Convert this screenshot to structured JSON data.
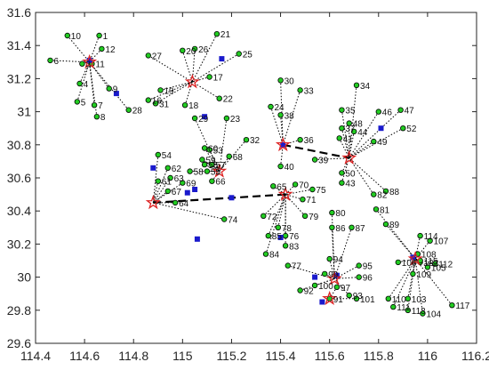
{
  "chart_data": {
    "type": "scatter",
    "title": "",
    "xlabel": "",
    "ylabel": "",
    "xlim": [
      114.4,
      116.2
    ],
    "ylim": [
      29.6,
      31.6
    ],
    "x_ticks": [
      "114.4",
      "114.6",
      "114.8",
      "115",
      "115.2",
      "115.4",
      "115.6",
      "115.8",
      "116",
      "116.2"
    ],
    "y_ticks": [
      "29.6",
      "29.8",
      "30",
      "30.2",
      "30.4",
      "30.6",
      "30.8",
      "31",
      "31.2",
      "31.4",
      "31.6"
    ],
    "grid": false,
    "colors": {
      "point_fill": "#22cc22",
      "point_edge": "#000000",
      "hub_marker": "#1a1acc",
      "center_star": "#dd2222",
      "link_line": "#000000"
    },
    "centers": [
      {
        "name": "c1",
        "x": 114.62,
        "y": 31.3
      },
      {
        "name": "c2",
        "x": 115.04,
        "y": 31.18
      },
      {
        "name": "c3",
        "x": 115.41,
        "y": 30.8
      },
      {
        "name": "c4",
        "x": 115.68,
        "y": 30.72
      },
      {
        "name": "c5",
        "x": 115.15,
        "y": 30.64
      },
      {
        "name": "c6",
        "x": 114.88,
        "y": 30.45
      },
      {
        "name": "c7",
        "x": 115.42,
        "y": 30.5
      },
      {
        "name": "c8",
        "x": 115.62,
        "y": 29.99
      },
      {
        "name": "c9",
        "x": 115.6,
        "y": 29.87
      },
      {
        "name": "c10",
        "x": 115.95,
        "y": 30.11
      }
    ],
    "center_links": [
      [
        "c6",
        "c7"
      ],
      [
        "c3",
        "c4"
      ]
    ],
    "points": [
      {
        "label": "1",
        "x": 114.66,
        "y": 31.46,
        "c": "c1"
      },
      {
        "label": "3",
        "x": 114.59,
        "y": 31.29,
        "c": "c1"
      },
      {
        "label": "4",
        "x": 114.58,
        "y": 31.17,
        "c": "c1"
      },
      {
        "label": "5",
        "x": 114.57,
        "y": 31.06,
        "c": "c1"
      },
      {
        "label": "6",
        "x": 114.46,
        "y": 31.31,
        "c": "c1"
      },
      {
        "label": "7",
        "x": 114.64,
        "y": 31.04,
        "c": "c1"
      },
      {
        "label": "8",
        "x": 114.65,
        "y": 30.97,
        "c": "c1"
      },
      {
        "label": "9",
        "x": 114.7,
        "y": 31.14,
        "c": "c1"
      },
      {
        "label": "10",
        "x": 114.53,
        "y": 31.46,
        "c": "c1"
      },
      {
        "label": "11",
        "x": 114.63,
        "y": 31.29,
        "c": "c1"
      },
      {
        "label": "12",
        "x": 114.67,
        "y": 31.38,
        "c": "c1"
      },
      {
        "label": "28",
        "x": 114.78,
        "y": 31.01,
        "c": "c1"
      },
      {
        "label": "16",
        "x": 114.86,
        "y": 31.07,
        "c": "c2"
      },
      {
        "label": "17",
        "x": 115.11,
        "y": 31.21,
        "c": "c2"
      },
      {
        "label": "18",
        "x": 115.01,
        "y": 31.04,
        "c": "c2"
      },
      {
        "label": "19",
        "x": 114.91,
        "y": 31.13,
        "c": "c2"
      },
      {
        "label": "20",
        "x": 115.0,
        "y": 31.37,
        "c": "c2"
      },
      {
        "label": "21",
        "x": 115.14,
        "y": 31.47,
        "c": "c2"
      },
      {
        "label": "22",
        "x": 115.15,
        "y": 31.08,
        "c": "c2"
      },
      {
        "label": "25",
        "x": 115.23,
        "y": 31.35,
        "c": "c2"
      },
      {
        "label": "26",
        "x": 115.05,
        "y": 31.38,
        "c": "c2"
      },
      {
        "label": "27",
        "x": 114.86,
        "y": 31.34,
        "c": "c2"
      },
      {
        "label": "31",
        "x": 114.89,
        "y": 31.05,
        "c": "c2"
      },
      {
        "label": "24",
        "x": 115.36,
        "y": 31.03,
        "c": "c3"
      },
      {
        "label": "30",
        "x": 115.4,
        "y": 31.19,
        "c": "c3"
      },
      {
        "label": "33",
        "x": 115.48,
        "y": 31.13,
        "c": "c3"
      },
      {
        "label": "36",
        "x": 115.48,
        "y": 30.83,
        "c": "c3"
      },
      {
        "label": "38",
        "x": 115.4,
        "y": 30.98,
        "c": "c3"
      },
      {
        "label": "40",
        "x": 115.4,
        "y": 30.67,
        "c": "c3"
      },
      {
        "label": "34",
        "x": 115.71,
        "y": 31.16,
        "c": "c4"
      },
      {
        "label": "35",
        "x": 115.65,
        "y": 31.01,
        "c": "c4"
      },
      {
        "label": "37",
        "x": 115.65,
        "y": 30.9,
        "c": "c4"
      },
      {
        "label": "39",
        "x": 115.54,
        "y": 30.71,
        "c": "c4"
      },
      {
        "label": "41",
        "x": 115.64,
        "y": 30.84,
        "c": "c4"
      },
      {
        "label": "43",
        "x": 115.65,
        "y": 30.57,
        "c": "c4"
      },
      {
        "label": "44",
        "x": 115.7,
        "y": 30.88,
        "c": "c4"
      },
      {
        "label": "46",
        "x": 115.8,
        "y": 31.0,
        "c": "c4"
      },
      {
        "label": "47",
        "x": 115.89,
        "y": 31.01,
        "c": "c4"
      },
      {
        "label": "48",
        "x": 115.68,
        "y": 30.93,
        "c": "c4"
      },
      {
        "label": "49",
        "x": 115.78,
        "y": 30.82,
        "c": "c4"
      },
      {
        "label": "50",
        "x": 115.65,
        "y": 30.63,
        "c": "c4"
      },
      {
        "label": "52",
        "x": 115.9,
        "y": 30.9,
        "c": "c4"
      },
      {
        "label": "82",
        "x": 115.78,
        "y": 30.5,
        "c": "c4"
      },
      {
        "label": "88",
        "x": 115.83,
        "y": 30.52,
        "c": "c4"
      },
      {
        "label": "23",
        "x": 115.18,
        "y": 30.96,
        "c": "c5"
      },
      {
        "label": "29",
        "x": 115.05,
        "y": 30.96,
        "c": "c5"
      },
      {
        "label": "32",
        "x": 115.26,
        "y": 30.83,
        "c": "c5"
      },
      {
        "label": "53",
        "x": 115.11,
        "y": 30.77,
        "c": "c5"
      },
      {
        "label": "55",
        "x": 115.1,
        "y": 30.64,
        "c": "c5"
      },
      {
        "label": "56",
        "x": 115.09,
        "y": 30.68,
        "c": "c5"
      },
      {
        "label": "57",
        "x": 115.12,
        "y": 30.68,
        "c": "c5"
      },
      {
        "label": "58",
        "x": 115.03,
        "y": 30.64,
        "c": "c5"
      },
      {
        "label": "59",
        "x": 115.08,
        "y": 30.71,
        "c": "c5"
      },
      {
        "label": "60",
        "x": 115.09,
        "y": 30.78,
        "c": "c5"
      },
      {
        "label": "66",
        "x": 115.12,
        "y": 30.58,
        "c": "c5"
      },
      {
        "label": "68",
        "x": 115.19,
        "y": 30.73,
        "c": "c5"
      },
      {
        "label": "54",
        "x": 114.9,
        "y": 30.74,
        "c": "c6"
      },
      {
        "label": "61",
        "x": 114.9,
        "y": 30.58,
        "c": "c6"
      },
      {
        "label": "62",
        "x": 114.94,
        "y": 30.66,
        "c": "c6"
      },
      {
        "label": "63",
        "x": 114.95,
        "y": 30.6,
        "c": "c6"
      },
      {
        "label": "64",
        "x": 114.97,
        "y": 30.45,
        "c": "c6"
      },
      {
        "label": "67",
        "x": 114.94,
        "y": 30.52,
        "c": "c6"
      },
      {
        "label": "69",
        "x": 115.0,
        "y": 30.57,
        "c": "c6"
      },
      {
        "label": "74",
        "x": 115.17,
        "y": 30.35,
        "c": "c6"
      },
      {
        "label": "65",
        "x": 115.37,
        "y": 30.55,
        "c": "c7"
      },
      {
        "label": "70",
        "x": 115.46,
        "y": 30.56,
        "c": "c7"
      },
      {
        "label": "71",
        "x": 115.49,
        "y": 30.47,
        "c": "c7"
      },
      {
        "label": "72",
        "x": 115.33,
        "y": 30.37,
        "c": "c7"
      },
      {
        "label": "75",
        "x": 115.53,
        "y": 30.53,
        "c": "c7"
      },
      {
        "label": "76",
        "x": 115.42,
        "y": 30.25,
        "c": "c7"
      },
      {
        "label": "78",
        "x": 115.39,
        "y": 30.3,
        "c": "c7"
      },
      {
        "label": "79",
        "x": 115.5,
        "y": 30.37,
        "c": "c7"
      },
      {
        "label": "83",
        "x": 115.42,
        "y": 30.19,
        "c": "c7"
      },
      {
        "label": "84",
        "x": 115.34,
        "y": 30.14,
        "c": "c7"
      },
      {
        "label": "85",
        "x": 115.35,
        "y": 30.25,
        "c": "c7"
      },
      {
        "label": "77",
        "x": 115.43,
        "y": 30.07,
        "c": "c8"
      },
      {
        "label": "80",
        "x": 115.61,
        "y": 30.39,
        "c": "c8"
      },
      {
        "label": "86",
        "x": 115.61,
        "y": 30.3,
        "c": "c8"
      },
      {
        "label": "87",
        "x": 115.69,
        "y": 30.3,
        "c": "c8"
      },
      {
        "label": "92",
        "x": 115.48,
        "y": 29.92,
        "c": "c8"
      },
      {
        "label": "93",
        "x": 115.68,
        "y": 29.89,
        "c": "c8"
      },
      {
        "label": "94",
        "x": 115.6,
        "y": 30.11,
        "c": "c8"
      },
      {
        "label": "95",
        "x": 115.72,
        "y": 30.07,
        "c": "c8"
      },
      {
        "label": "96",
        "x": 115.72,
        "y": 30.0,
        "c": "c8"
      },
      {
        "label": "99",
        "x": 115.58,
        "y": 30.02,
        "c": "c8"
      },
      {
        "label": "100",
        "x": 115.54,
        "y": 29.95,
        "c": "c8"
      },
      {
        "label": "91",
        "x": 115.6,
        "y": 29.87,
        "c": "c9"
      },
      {
        "label": "97",
        "x": 115.63,
        "y": 29.94,
        "c": "c9"
      },
      {
        "label": "101",
        "x": 115.71,
        "y": 29.87,
        "c": "c9"
      },
      {
        "label": "81",
        "x": 115.79,
        "y": 30.41,
        "c": "c10"
      },
      {
        "label": "89",
        "x": 115.83,
        "y": 30.32,
        "c": "c10"
      },
      {
        "label": "102",
        "x": 115.97,
        "y": 30.09,
        "c": "c10"
      },
      {
        "label": "103",
        "x": 115.92,
        "y": 29.87,
        "c": "c10"
      },
      {
        "label": "104",
        "x": 115.98,
        "y": 29.78,
        "c": "c10"
      },
      {
        "label": "105",
        "x": 116.0,
        "y": 30.06,
        "c": "c10"
      },
      {
        "label": "106",
        "x": 115.88,
        "y": 30.09,
        "c": "c10"
      },
      {
        "label": "107",
        "x": 116.01,
        "y": 30.22,
        "c": "c10"
      },
      {
        "label": "108",
        "x": 115.96,
        "y": 30.14,
        "c": "c10"
      },
      {
        "label": "109",
        "x": 115.94,
        "y": 30.02,
        "c": "c10"
      },
      {
        "label": "110",
        "x": 115.84,
        "y": 29.87,
        "c": "c10"
      },
      {
        "label": "111",
        "x": 115.86,
        "y": 29.82,
        "c": "c10"
      },
      {
        "label": "112",
        "x": 116.03,
        "y": 30.08,
        "c": "c10"
      },
      {
        "label": "113",
        "x": 115.92,
        "y": 29.8,
        "c": "c10"
      },
      {
        "label": "114",
        "x": 115.97,
        "y": 30.25,
        "c": "c10"
      },
      {
        "label": "115",
        "x": 115.97,
        "y": 30.1,
        "c": "c10"
      },
      {
        "label": "117",
        "x": 116.1,
        "y": 29.83,
        "c": "c10"
      }
    ],
    "hubs": [
      {
        "x": 114.62,
        "y": 31.31
      },
      {
        "x": 114.73,
        "y": 31.11
      },
      {
        "x": 115.16,
        "y": 31.32
      },
      {
        "x": 115.09,
        "y": 30.97
      },
      {
        "x": 114.88,
        "y": 30.66
      },
      {
        "x": 115.05,
        "y": 30.53
      },
      {
        "x": 115.02,
        "y": 30.51
      },
      {
        "x": 115.2,
        "y": 30.48
      },
      {
        "x": 115.06,
        "y": 30.23
      },
      {
        "x": 115.4,
        "y": 30.24
      },
      {
        "x": 115.41,
        "y": 30.8
      },
      {
        "x": 115.81,
        "y": 30.9
      },
      {
        "x": 115.63,
        "y": 30.01
      },
      {
        "x": 115.54,
        "y": 30.0
      },
      {
        "x": 115.57,
        "y": 29.85
      },
      {
        "x": 115.94,
        "y": 30.12
      }
    ]
  }
}
